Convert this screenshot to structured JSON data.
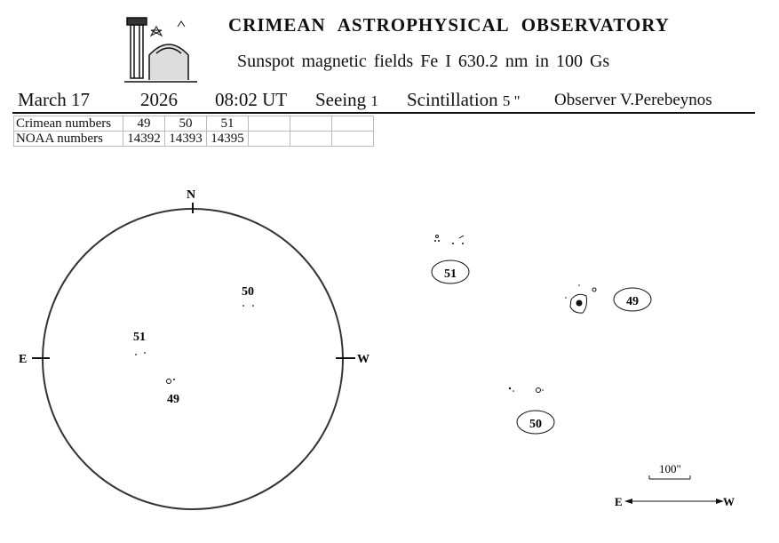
{
  "header": {
    "title": "CRIMEAN ASTROPHYSICAL OBSERVATORY",
    "subtitle": "Sunspot magnetic fields Fe I 630.2 nm in 100 Gs",
    "date": "March 17",
    "year": "2026",
    "time": "08:02 UT",
    "seeing_label": "Seeing",
    "seeing_value": "1",
    "scintillation_label": "Scintillation",
    "scintillation_value": "5 \"",
    "observer": "Observer V.Perebeynos"
  },
  "table": {
    "rows": [
      {
        "label": "Crimean numbers",
        "cells": [
          "49",
          "50",
          "51",
          "",
          "",
          ""
        ]
      },
      {
        "label": "NOAA numbers",
        "cells": [
          "14392",
          "14393",
          "14395",
          "",
          "",
          ""
        ]
      }
    ]
  },
  "disk": {
    "north": "N",
    "east": "E",
    "west": "W",
    "regions": [
      {
        "label": "50"
      },
      {
        "label": "51"
      },
      {
        "label": "49"
      }
    ]
  },
  "detail": {
    "regions": [
      {
        "label": "51"
      },
      {
        "label": "49"
      },
      {
        "label": "50"
      }
    ],
    "scale_label": "100\"",
    "east": "E",
    "west": "W"
  }
}
